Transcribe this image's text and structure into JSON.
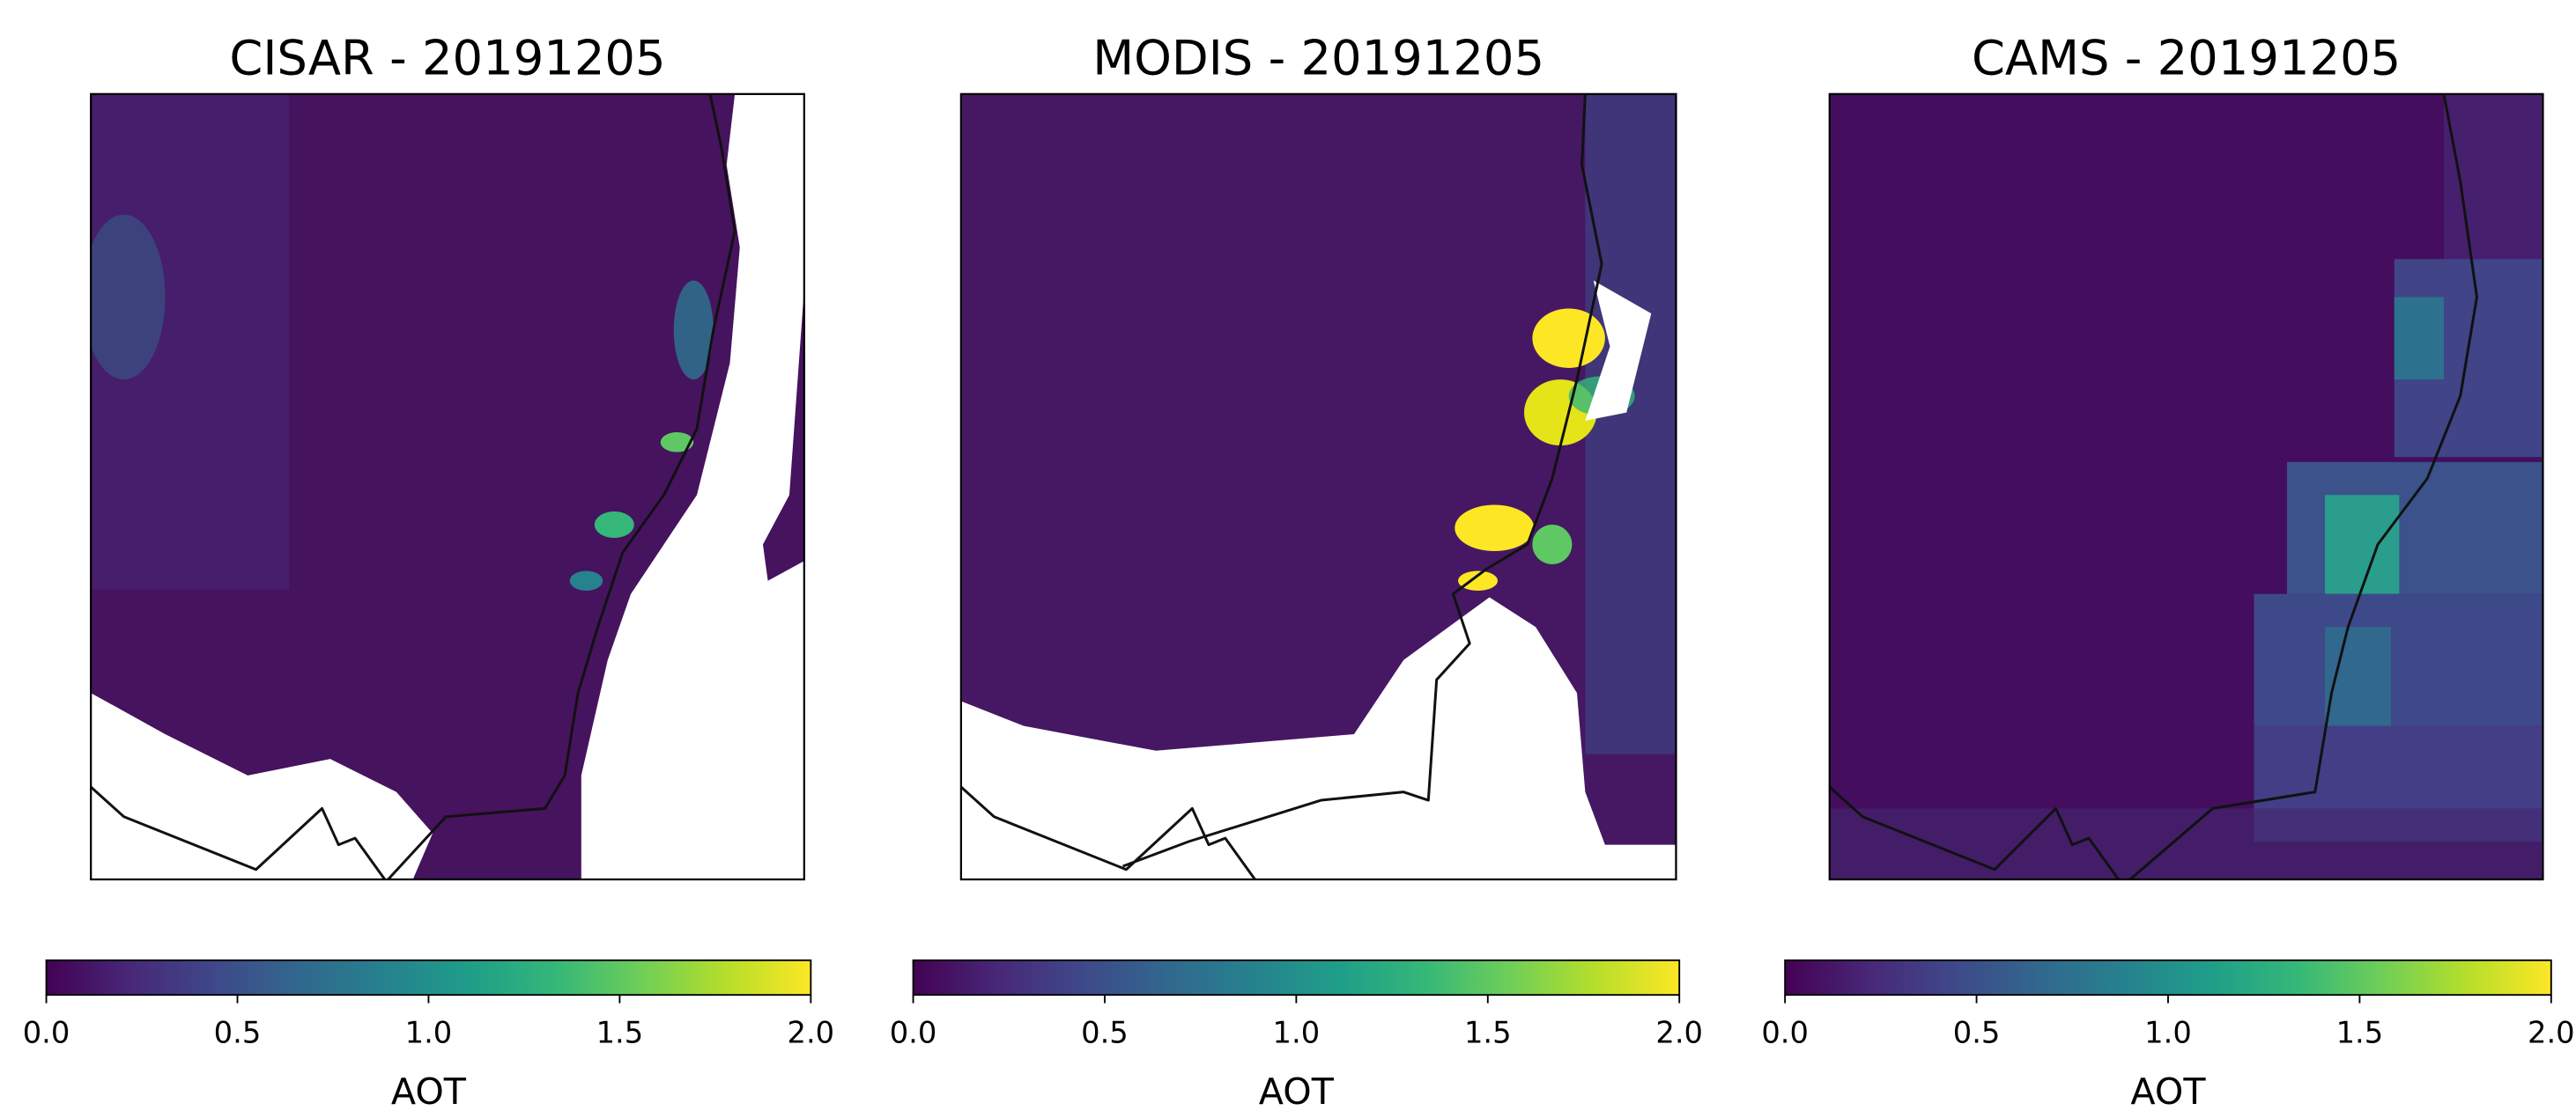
{
  "chart_data": [
    {
      "type": "heatmap",
      "title": "CISAR - 20191205",
      "colormap": "viridis",
      "clim": [
        0,
        2
      ],
      "cticks": [
        {
          "value": 0,
          "label": "0.0"
        },
        {
          "value": 0.5,
          "label": "0.5"
        },
        {
          "value": 1,
          "label": "1.0"
        },
        {
          "value": 1.5,
          "label": "1.5"
        },
        {
          "value": 2,
          "label": "2.0"
        }
      ],
      "colorbar_label": "AOT"
    },
    {
      "type": "heatmap",
      "title": "MODIS - 20191205",
      "colormap": "viridis",
      "clim": [
        0,
        2
      ],
      "cticks": [
        {
          "value": 0,
          "label": "0.0"
        },
        {
          "value": 0.5,
          "label": "0.5"
        },
        {
          "value": 1,
          "label": "1.0"
        },
        {
          "value": 1.5,
          "label": "1.5"
        },
        {
          "value": 2,
          "label": "2.0"
        }
      ],
      "colorbar_label": "AOT"
    },
    {
      "type": "heatmap",
      "title": "CAMS - 20191205",
      "colormap": "viridis",
      "clim": [
        0,
        2
      ],
      "cticks": [
        {
          "value": 0,
          "label": "0.0"
        },
        {
          "value": 0.5,
          "label": "0.5"
        },
        {
          "value": 1,
          "label": "1.0"
        },
        {
          "value": 1.5,
          "label": "1.5"
        },
        {
          "value": 2,
          "label": "2.0"
        }
      ],
      "colorbar_label": "AOT"
    }
  ]
}
